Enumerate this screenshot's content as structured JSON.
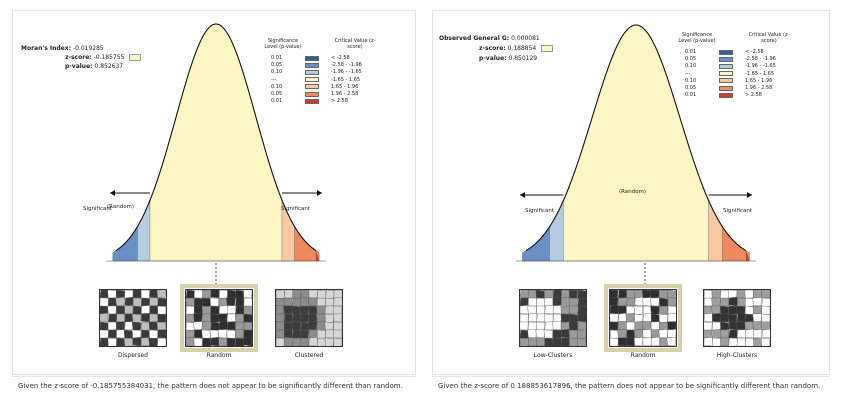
{
  "colors": {
    "curve_fill": "#fbf6c3",
    "low_strong": "#2e5e9f",
    "low_mid": "#6a90c6",
    "low_weak": "#b4cbe0",
    "neutral": "#fbf6c3",
    "high_weak": "#f8c9a0",
    "high_mid": "#ef8a5e",
    "high_strong": "#cd3b2a"
  },
  "legend": {
    "sig_header": "Significance Level (p-value)",
    "crit_header": "Critical Value (z-score)",
    "rows": [
      {
        "p": "0.01",
        "z": "< -2.58",
        "color": "#2e5e9f"
      },
      {
        "p": "0.05",
        "z": "-2.58 - -1.96",
        "color": "#6a90c6"
      },
      {
        "p": "0.10",
        "z": "-1.96 - -1.65",
        "color": "#b4cbe0"
      },
      {
        "p": "---",
        "z": "-1.65 - 1.65",
        "color": "#fbf6c3"
      },
      {
        "p": "0.10",
        "z": "1.65 - 1.96",
        "color": "#f8c9a0"
      },
      {
        "p": "0.05",
        "z": "1.96 - 2.58",
        "color": "#ef8a5e"
      },
      {
        "p": "0.01",
        "z": "> 2.58",
        "color": "#cd3b2a"
      }
    ]
  },
  "left": {
    "index_label": "Moran's Index:",
    "index_value": "-0.019285",
    "z_label": "z-score:",
    "z_value": "-0.185755",
    "p_label": "p-value:",
    "p_value": "0.852637",
    "random_label": "(Random)",
    "sig_left": "Significant",
    "sig_right": "Significant",
    "maps": [
      "Dispersed",
      "Random",
      "Clustered"
    ],
    "conclusion": "Given the z-score of -0.185755384031, the pattern does not appear to be significantly different than random."
  },
  "right": {
    "index_label": "Observed General G:",
    "index_value": "0.000081",
    "z_label": "z-score:",
    "z_value": "0.188854",
    "p_label": "p-value:",
    "p_value": "0.850129",
    "random_label": "(Random)",
    "sig_left": "Significant",
    "sig_right": "Significant",
    "maps": [
      "Low-Clusters",
      "Random",
      "High-Clusters"
    ],
    "conclusion": "Given the z-score of 0.188853617896, the pattern does not appear to be significantly different than random."
  }
}
